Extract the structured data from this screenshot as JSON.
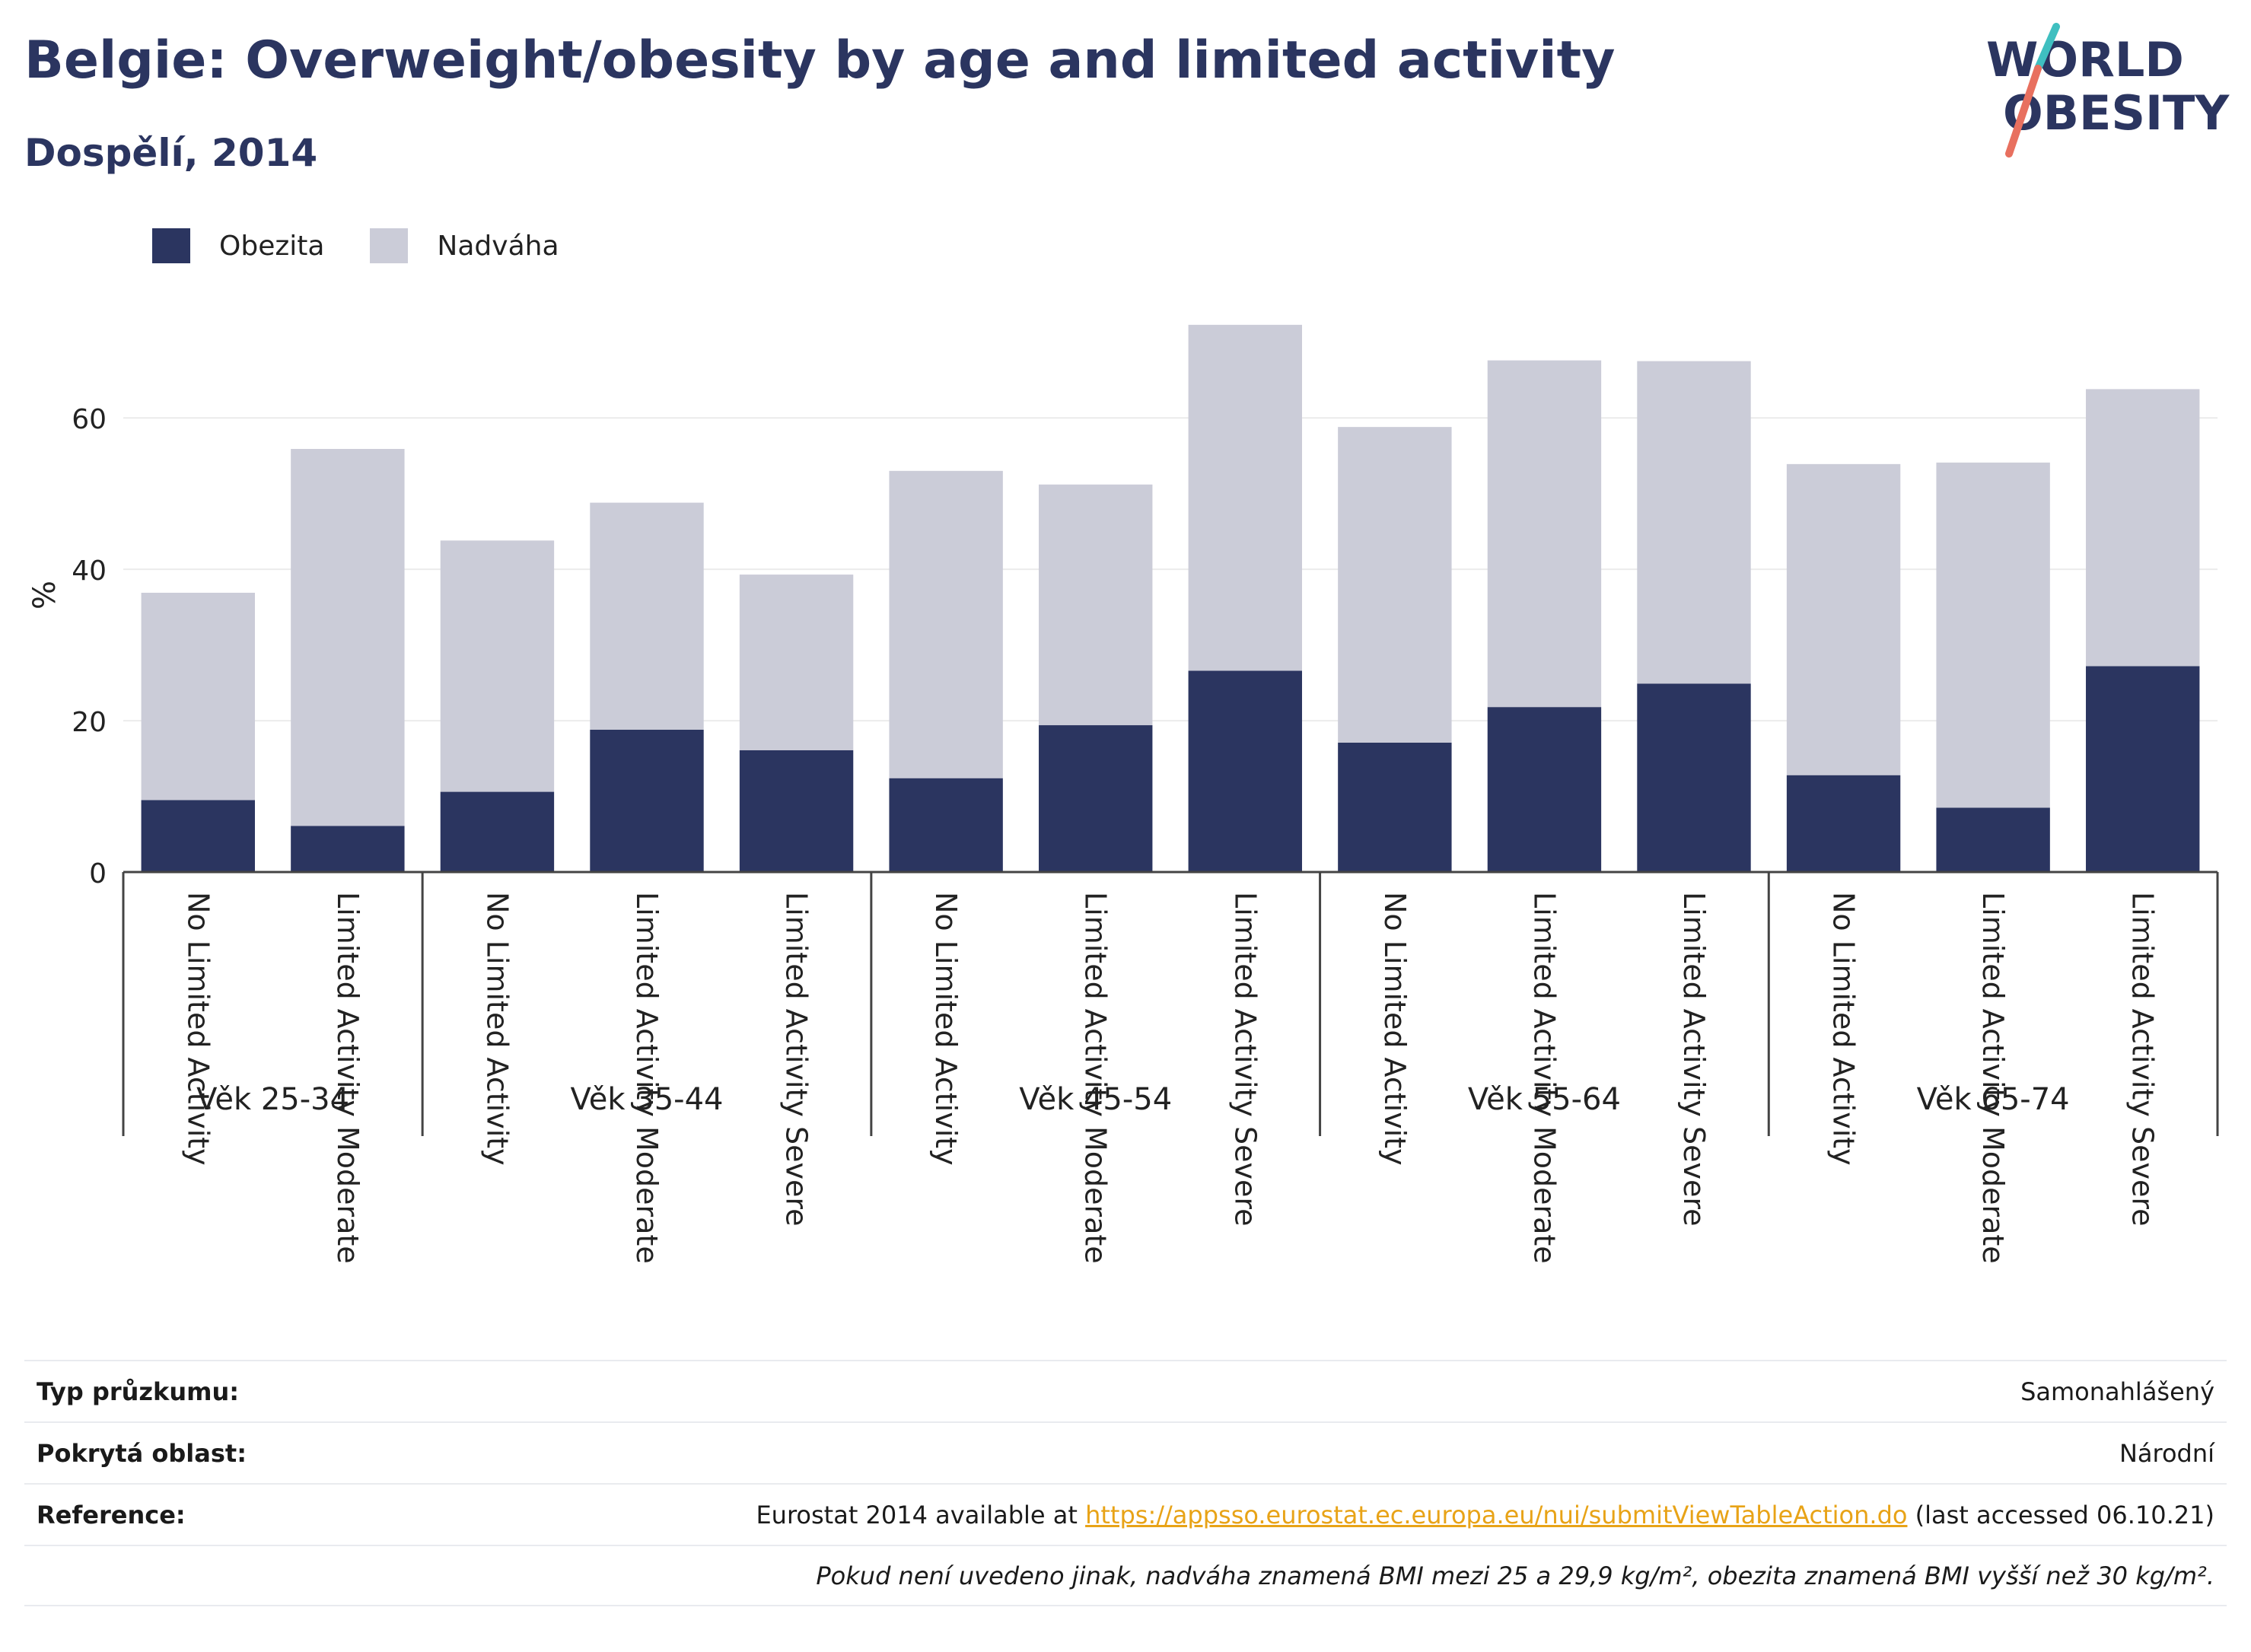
{
  "header": {
    "title": "Belgie: Overweight/obesity by age and limited activity",
    "subtitle": "Dospělí, 2014"
  },
  "logo": {
    "line1": "WORLD",
    "line2": "OBESITY"
  },
  "colors": {
    "obesity": "#2b3560",
    "overweight": "#cbccd8",
    "accent_red": "#e8705f",
    "accent_teal": "#3fbfc0",
    "link": "#e8a317"
  },
  "legend": [
    {
      "label": "Obezita",
      "color": "#2b3560"
    },
    {
      "label": "Nadváha",
      "color": "#cbccd8"
    }
  ],
  "chart_data": {
    "type": "bar",
    "stacked": true,
    "ylabel": "%",
    "ylim": [
      0,
      75
    ],
    "yticks": [
      0,
      20,
      40,
      60
    ],
    "grid": true,
    "legend_position": "top-left",
    "groups": [
      {
        "label": "Věk 25-34",
        "categories": [
          "No Limited Activity",
          "Limited Activity Moderate"
        ]
      },
      {
        "label": "Věk 35-44",
        "categories": [
          "No Limited Activity",
          "Limited Activity Moderate",
          "Limited Activity Severe"
        ]
      },
      {
        "label": "Věk 45-54",
        "categories": [
          "No Limited Activity",
          "Limited Activity Moderate",
          "Limited Activity Severe"
        ]
      },
      {
        "label": "Věk 55-64",
        "categories": [
          "No Limited Activity",
          "Limited Activity Moderate",
          "Limited Activity Severe"
        ]
      },
      {
        "label": "Věk 65-74",
        "categories": [
          "No Limited Activity",
          "Limited Activity Moderate",
          "Limited Activity Severe"
        ]
      }
    ],
    "series": [
      {
        "name": "Obezita",
        "values": [
          9.5,
          6.1,
          10.6,
          18.8,
          16.1,
          12.4,
          19.4,
          26.6,
          17.1,
          21.8,
          24.9,
          12.8,
          8.5,
          27.2
        ]
      },
      {
        "name": "Nadváha",
        "values": [
          27.4,
          49.8,
          33.2,
          30.0,
          23.2,
          40.6,
          31.8,
          45.7,
          41.7,
          45.8,
          42.6,
          41.1,
          45.6,
          36.6
        ]
      }
    ]
  },
  "info": {
    "survey_type_label": "Typ průzkumu:",
    "survey_type_value": "Samonahlášený",
    "coverage_label": "Pokrytá oblast:",
    "coverage_value": "Národní",
    "reference_label": "Reference:",
    "reference_prefix": "Eurostat 2014 available at ",
    "reference_link": "https://appsso.eurostat.ec.europa.eu/nui/submitViewTableAction.do",
    "reference_suffix": " (last accessed 06.10.21)",
    "footnote": "Pokud není uvedeno jinak, nadváha znamená BMI mezi 25 a 29,9 kg/m², obezita znamená BMI vyšší než 30 kg/m²."
  }
}
